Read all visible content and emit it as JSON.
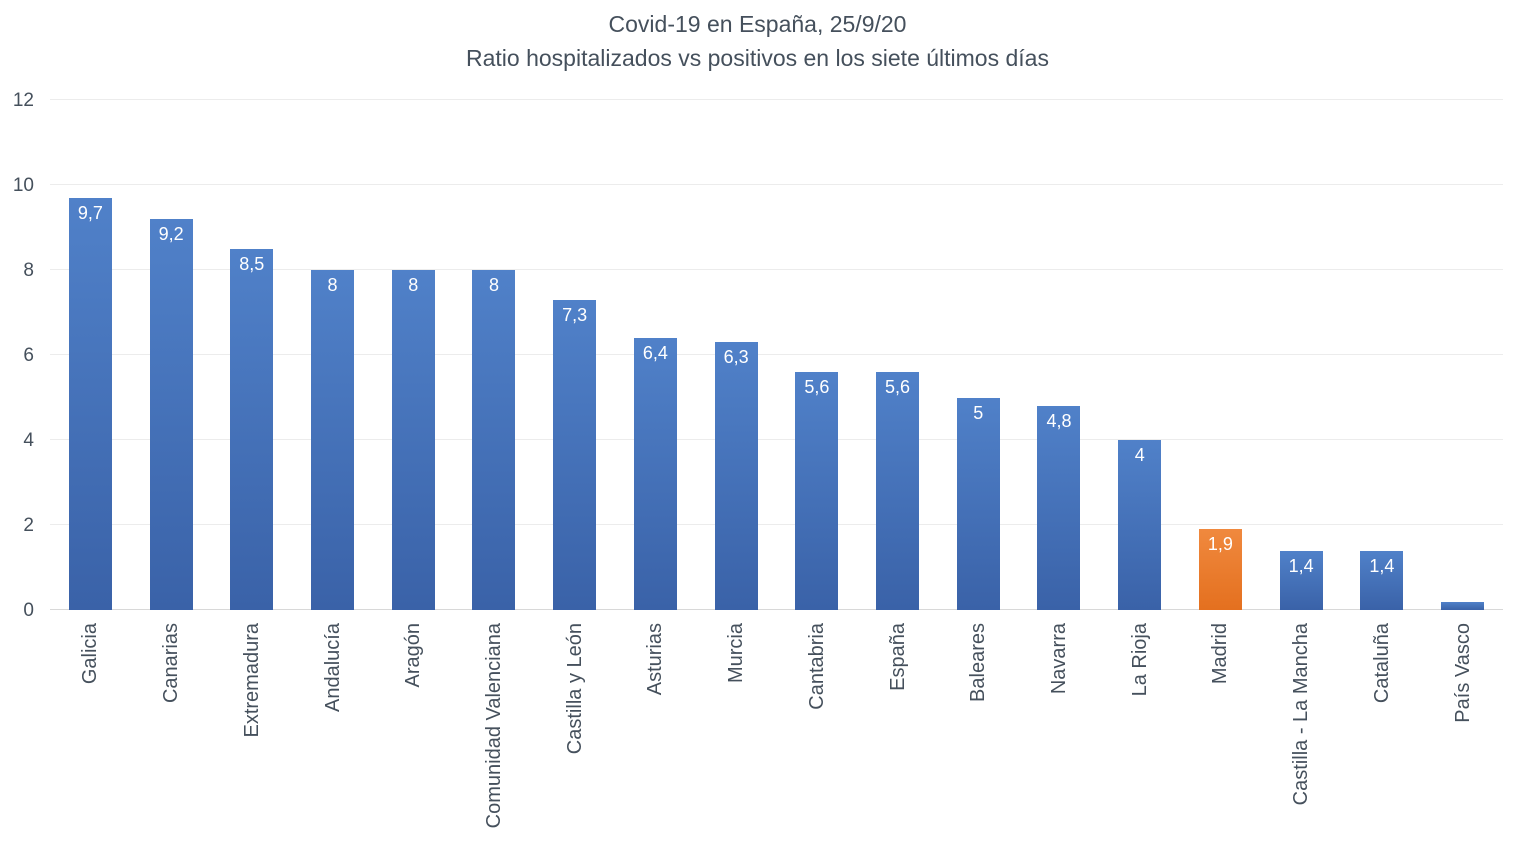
{
  "chart_data": {
    "type": "bar",
    "title": "Covid-19 en España, 25/9/20",
    "subtitle": "Ratio hospitalizados vs positivos en los siete últimos días",
    "categories": [
      "Galicia",
      "Canarias",
      "Extremadura",
      "Andalucía",
      "Aragón",
      "Comunidad Valenciana",
      "Castilla y León",
      "Asturias",
      "Murcia",
      "Cantabria",
      "España",
      "Baleares",
      "Navarra",
      "La Rioja",
      "Madrid",
      "Castilla - La Mancha",
      "Cataluña",
      "País Vasco"
    ],
    "values": [
      9.7,
      9.2,
      8.5,
      8,
      8,
      8,
      7.3,
      6.4,
      6.3,
      5.6,
      5.6,
      5,
      4.8,
      4,
      1.9,
      1.4,
      1.4,
      0.2
    ],
    "value_labels": [
      "9,7",
      "9,2",
      "8,5",
      "8",
      "8",
      "8",
      "7,3",
      "6,4",
      "6,3",
      "5,6",
      "5,6",
      "5",
      "4,8",
      "4",
      "1,9",
      "1,4",
      "1,4",
      ""
    ],
    "highlight_index": 14,
    "ylim": [
      0,
      12
    ],
    "yticks": [
      0,
      2,
      4,
      6,
      8,
      10,
      12
    ],
    "grid": true,
    "legend": "none",
    "colors": {
      "bar_top": "#5081c9",
      "bar_bottom": "#3a62a8",
      "highlight_top": "#f0893e",
      "highlight_bottom": "#e4701f",
      "gridline": "#ececec",
      "baseline": "#d8d8d8",
      "text": "#45505c",
      "value_label": "#ffffff"
    }
  }
}
